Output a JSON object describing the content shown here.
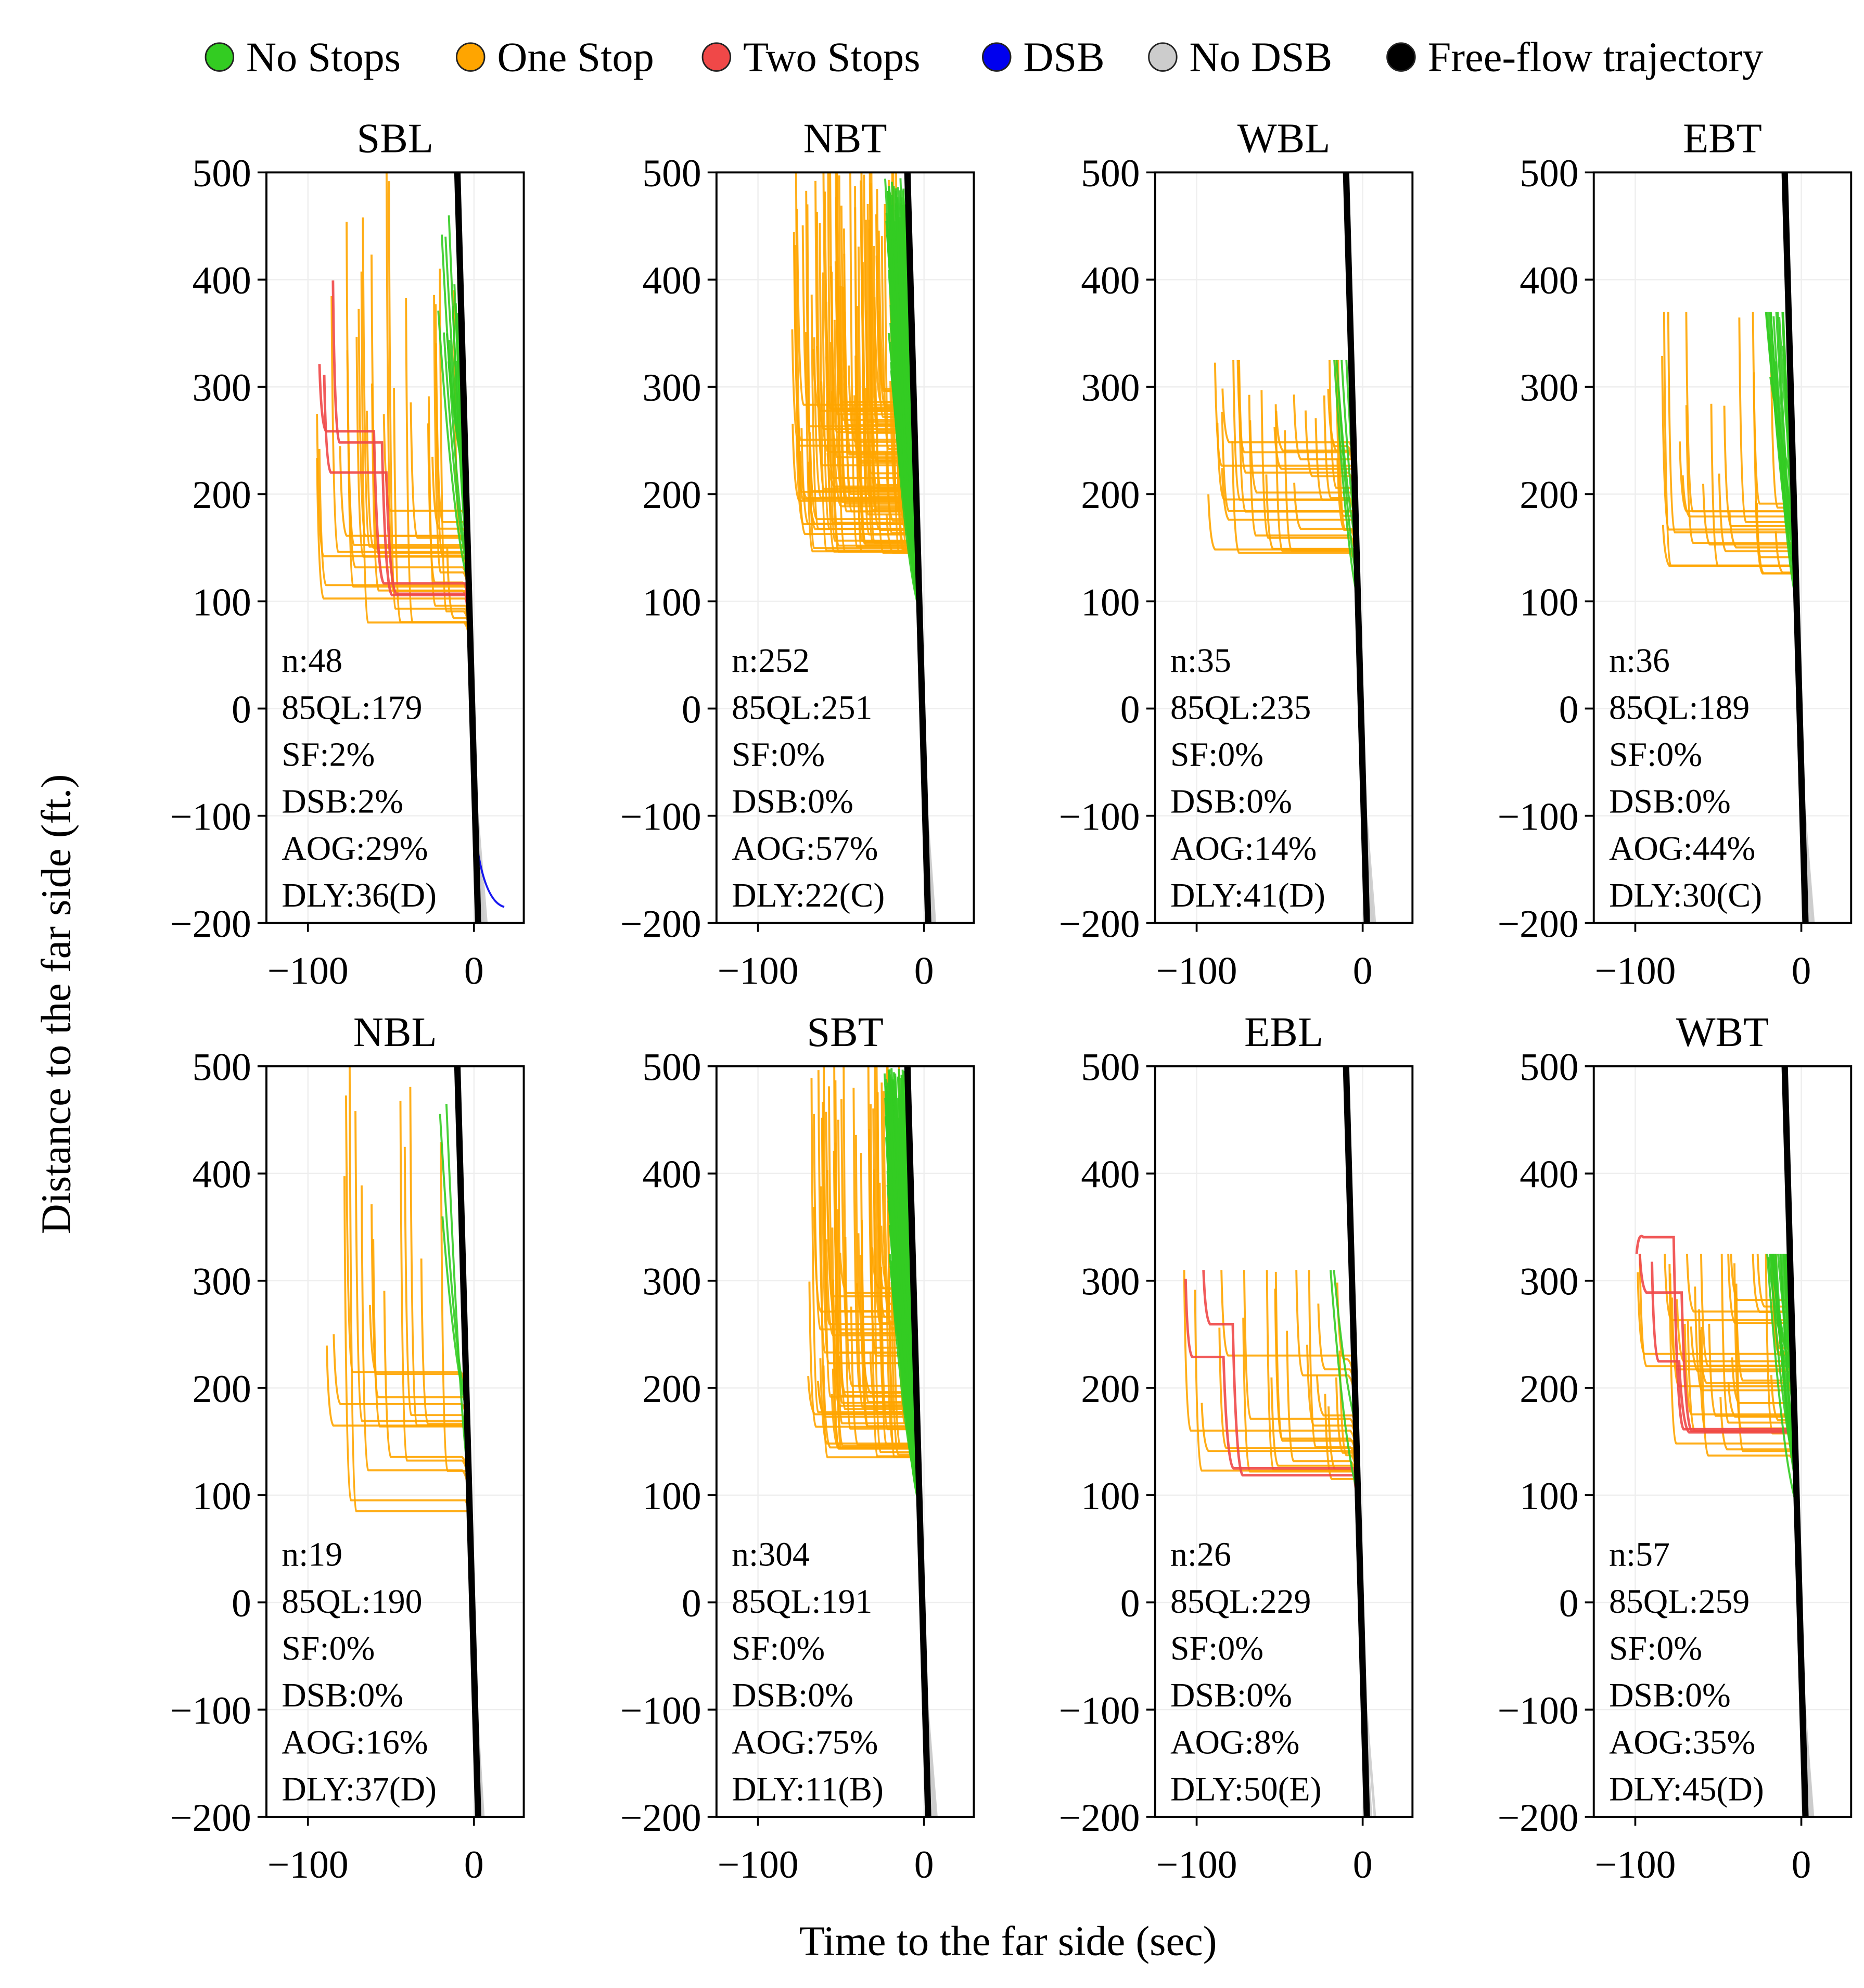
{
  "chart_data": {
    "type": "line",
    "xlabel": "Time to the far side (sec)",
    "ylabel": "Distance to the far side (ft.)",
    "xlim": [
      -125,
      30
    ],
    "ylim": [
      -200,
      500
    ],
    "xticks": [
      -100,
      0
    ],
    "xtick_labels": [
      "−100",
      "0"
    ],
    "yticks": [
      500,
      400,
      300,
      200,
      100,
      0,
      -100,
      -200
    ],
    "ytick_labels": [
      "500",
      "400",
      "300",
      "200",
      "100",
      "0",
      "−100",
      "−200"
    ],
    "grid": true,
    "legend_position": "top",
    "legend": [
      {
        "label": "No Stops",
        "color": "#33cc22"
      },
      {
        "label": "One Stop",
        "color": "#ffa500"
      },
      {
        "label": "Two Stops",
        "color": "#f04848"
      },
      {
        "label": "DSB",
        "color": "#0000ee"
      },
      {
        "label": "No DSB",
        "color": "#cccccc"
      },
      {
        "label": "Free-flow trajectory",
        "color": "#000000"
      }
    ],
    "free_flow": {
      "t": [
        -10,
        2.5
      ],
      "d": [
        500,
        -200
      ]
    },
    "panels": [
      {
        "title": "SBL",
        "n": 48,
        "stats": [
          "n:48",
          "85QL:179",
          "SF:2%",
          "DSB:2%",
          "AOG:29%",
          "DLY:36(D)"
        ],
        "aog": 0.29,
        "two_stops": 3,
        "dsb": 1,
        "queue_range": [
          80,
          185
        ],
        "earliest_arrival_sec": -95,
        "start_dist_max": 500
      },
      {
        "title": "NBT",
        "n": 252,
        "stats": [
          "n:252",
          "85QL:251",
          "SF:0%",
          "DSB:0%",
          "AOG:57%",
          "DLY:22(C)"
        ],
        "aog": 0.57,
        "two_stops": 0,
        "dsb": 0,
        "queue_range": [
          145,
          300
        ],
        "earliest_arrival_sec": -80,
        "start_dist_max": 500
      },
      {
        "title": "WBL",
        "n": 35,
        "stats": [
          "n:35",
          "85QL:235",
          "SF:0%",
          "DSB:0%",
          "AOG:14%",
          "DLY:41(D)"
        ],
        "aog": 0.14,
        "two_stops": 0,
        "dsb": 0,
        "queue_range": [
          145,
          260
        ],
        "earliest_arrival_sec": -100,
        "start_dist_max": 325
      },
      {
        "title": "EBT",
        "n": 36,
        "stats": [
          "n:36",
          "85QL:189",
          "SF:0%",
          "DSB:0%",
          "AOG:44%",
          "DLY:30(C)"
        ],
        "aog": 0.44,
        "two_stops": 0,
        "dsb": 0,
        "queue_range": [
          125,
          200
        ],
        "earliest_arrival_sec": -85,
        "start_dist_max": 370
      },
      {
        "title": "NBL",
        "n": 19,
        "stats": [
          "n:19",
          "85QL:190",
          "SF:0%",
          "DSB:0%",
          "AOG:16%",
          "DLY:37(D)"
        ],
        "aog": 0.16,
        "two_stops": 0,
        "dsb": 0,
        "queue_range": [
          80,
          215
        ],
        "earliest_arrival_sec": -90,
        "start_dist_max": 500
      },
      {
        "title": "SBT",
        "n": 304,
        "stats": [
          "n:304",
          "85QL:191",
          "SF:0%",
          "DSB:0%",
          "AOG:75%",
          "DLY:11(B)"
        ],
        "aog": 0.75,
        "two_stops": 0,
        "dsb": 0,
        "queue_range": [
          135,
          300
        ],
        "earliest_arrival_sec": -70,
        "start_dist_max": 500
      },
      {
        "title": "EBL",
        "n": 26,
        "stats": [
          "n:26",
          "85QL:229",
          "SF:0%",
          "DSB:0%",
          "AOG:8%",
          "DLY:50(E)"
        ],
        "aog": 0.08,
        "two_stops": 2,
        "dsb": 0,
        "queue_range": [
          115,
          235
        ],
        "earliest_arrival_sec": -110,
        "start_dist_max": 310
      },
      {
        "title": "WBT",
        "n": 57,
        "stats": [
          "n:57",
          "85QL:259",
          "SF:0%",
          "DSB:0%",
          "AOG:35%",
          "DLY:45(D)"
        ],
        "aog": 0.35,
        "two_stops": 3,
        "dsb": 0,
        "queue_range": [
          130,
          290
        ],
        "earliest_arrival_sec": -100,
        "start_dist_max": 325
      }
    ]
  }
}
